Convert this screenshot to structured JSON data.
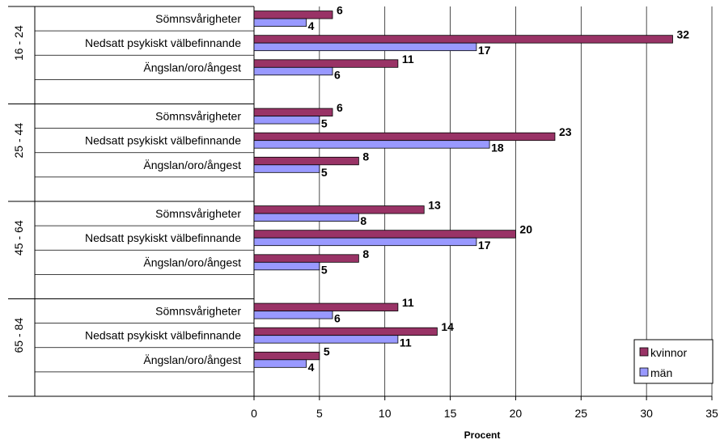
{
  "chart_data": {
    "type": "bar",
    "orientation": "horizontal",
    "xlabel": "Procent",
    "ylabel": "",
    "xlim": [
      0,
      35
    ],
    "xticks": [
      0,
      5,
      10,
      15,
      20,
      25,
      30,
      35
    ],
    "grid": true,
    "legend_position": "bottom-right",
    "groups": [
      {
        "label": "16 - 24",
        "categories": [
          "Sömnsvårigheter",
          "Nedsatt psykiskt välbefinnande",
          "Ängslan/oro/ångest"
        ],
        "series": [
          {
            "name": "kvinnor",
            "values": [
              6,
              32,
              11
            ]
          },
          {
            "name": "män",
            "values": [
              4,
              17,
              6
            ]
          }
        ]
      },
      {
        "label": "25 - 44",
        "categories": [
          "Sömnsvårigheter",
          "Nedsatt psykiskt välbefinnande",
          "Ängslan/oro/ångest"
        ],
        "series": [
          {
            "name": "kvinnor",
            "values": [
              6,
              23,
              8
            ]
          },
          {
            "name": "män",
            "values": [
              5,
              18,
              5
            ]
          }
        ]
      },
      {
        "label": "45 - 64",
        "categories": [
          "Sömnsvårigheter",
          "Nedsatt psykiskt välbefinnande",
          "Ängslan/oro/ångest"
        ],
        "series": [
          {
            "name": "kvinnor",
            "values": [
              13,
              20,
              8
            ]
          },
          {
            "name": "män",
            "values": [
              8,
              17,
              5
            ]
          }
        ]
      },
      {
        "label": "65 - 84",
        "categories": [
          "Sömnsvårigheter",
          "Nedsatt psykiskt välbefinnande",
          "Ängslan/oro/ångest"
        ],
        "series": [
          {
            "name": "kvinnor",
            "values": [
              11,
              14,
              5
            ]
          },
          {
            "name": "män",
            "values": [
              6,
              11,
              4
            ]
          }
        ]
      }
    ],
    "colors": {
      "kvinnor": "#993366",
      "män": "#9999ff"
    }
  }
}
